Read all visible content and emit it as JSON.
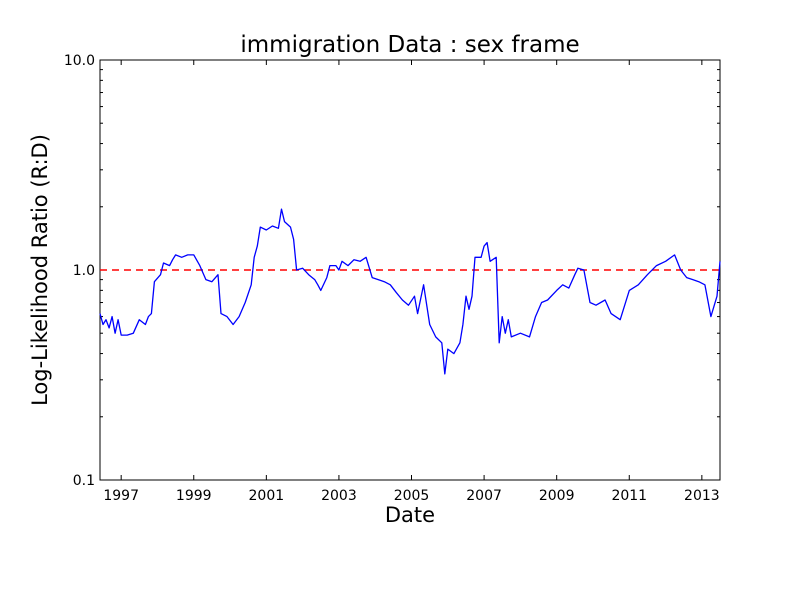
{
  "chart_data": {
    "type": "line",
    "title": "immigration Data : sex frame",
    "xlabel": "Date",
    "ylabel": "Log-Likelihood Ratio (R:D)",
    "y_scale": "log",
    "xlim": [
      "1996-06",
      "2013-07"
    ],
    "ylim": [
      0.1,
      10.0
    ],
    "x_ticks": [
      "1997",
      "1999",
      "2001",
      "2003",
      "2005",
      "2007",
      "2009",
      "2011",
      "2013"
    ],
    "y_ticks": [
      "0.1",
      "1.0",
      "10.0"
    ],
    "grid": false,
    "reference_line": {
      "y": 1.0,
      "style": "dashed",
      "color": "#ff0000"
    },
    "series": [
      {
        "color": "#0000ff",
        "points": [
          [
            "1996-06",
            0.62
          ],
          [
            "1996-07",
            0.55
          ],
          [
            "1996-08",
            0.58
          ],
          [
            "1996-09",
            0.53
          ],
          [
            "1996-10",
            0.6
          ],
          [
            "1996-11",
            0.5
          ],
          [
            "1996-12",
            0.58
          ],
          [
            "1997-01",
            0.49
          ],
          [
            "1997-03",
            0.49
          ],
          [
            "1997-05",
            0.5
          ],
          [
            "1997-07",
            0.58
          ],
          [
            "1997-09",
            0.55
          ],
          [
            "1997-10",
            0.6
          ],
          [
            "1997-11",
            0.62
          ],
          [
            "1997-12",
            0.88
          ],
          [
            "1998-02",
            0.95
          ],
          [
            "1998-03",
            1.08
          ],
          [
            "1998-05",
            1.05
          ],
          [
            "1998-06",
            1.12
          ],
          [
            "1998-07",
            1.18
          ],
          [
            "1998-09",
            1.15
          ],
          [
            "1998-11",
            1.18
          ],
          [
            "1999-01",
            1.18
          ],
          [
            "1999-03",
            1.05
          ],
          [
            "1999-05",
            0.9
          ],
          [
            "1999-07",
            0.88
          ],
          [
            "1999-09",
            0.95
          ],
          [
            "1999-10",
            0.62
          ],
          [
            "1999-12",
            0.6
          ],
          [
            "2000-02",
            0.55
          ],
          [
            "2000-04",
            0.6
          ],
          [
            "2000-06",
            0.7
          ],
          [
            "2000-08",
            0.85
          ],
          [
            "2000-09",
            1.15
          ],
          [
            "2000-10",
            1.3
          ],
          [
            "2000-11",
            1.6
          ],
          [
            "2001-01",
            1.55
          ],
          [
            "2001-03",
            1.62
          ],
          [
            "2001-05",
            1.58
          ],
          [
            "2001-06",
            1.95
          ],
          [
            "2001-07",
            1.7
          ],
          [
            "2001-09",
            1.6
          ],
          [
            "2001-10",
            1.4
          ],
          [
            "2001-11",
            1.0
          ],
          [
            "2002-01",
            1.02
          ],
          [
            "2002-03",
            0.95
          ],
          [
            "2002-05",
            0.9
          ],
          [
            "2002-06",
            0.85
          ],
          [
            "2002-07",
            0.8
          ],
          [
            "2002-09",
            0.92
          ],
          [
            "2002-10",
            1.05
          ],
          [
            "2002-12",
            1.05
          ],
          [
            "2003-01",
            1.0
          ],
          [
            "2003-02",
            1.1
          ],
          [
            "2003-04",
            1.05
          ],
          [
            "2003-06",
            1.12
          ],
          [
            "2003-08",
            1.1
          ],
          [
            "2003-10",
            1.15
          ],
          [
            "2003-12",
            0.92
          ],
          [
            "2004-02",
            0.9
          ],
          [
            "2004-04",
            0.88
          ],
          [
            "2004-06",
            0.85
          ],
          [
            "2004-08",
            0.78
          ],
          [
            "2004-10",
            0.72
          ],
          [
            "2004-12",
            0.68
          ],
          [
            "2005-02",
            0.75
          ],
          [
            "2005-03",
            0.62
          ],
          [
            "2005-05",
            0.85
          ],
          [
            "2005-07",
            0.55
          ],
          [
            "2005-09",
            0.48
          ],
          [
            "2005-11",
            0.45
          ],
          [
            "2005-12",
            0.32
          ],
          [
            "2006-01",
            0.42
          ],
          [
            "2006-03",
            0.4
          ],
          [
            "2006-05",
            0.45
          ],
          [
            "2006-06",
            0.55
          ],
          [
            "2006-07",
            0.75
          ],
          [
            "2006-08",
            0.65
          ],
          [
            "2006-09",
            0.75
          ],
          [
            "2006-10",
            1.15
          ],
          [
            "2006-12",
            1.15
          ],
          [
            "2007-01",
            1.3
          ],
          [
            "2007-02",
            1.35
          ],
          [
            "2007-03",
            1.1
          ],
          [
            "2007-05",
            1.15
          ],
          [
            "2007-06",
            0.45
          ],
          [
            "2007-07",
            0.6
          ],
          [
            "2007-08",
            0.5
          ],
          [
            "2007-09",
            0.58
          ],
          [
            "2007-10",
            0.48
          ],
          [
            "2008-01",
            0.5
          ],
          [
            "2008-04",
            0.48
          ],
          [
            "2008-06",
            0.6
          ],
          [
            "2008-08",
            0.7
          ],
          [
            "2008-10",
            0.72
          ],
          [
            "2009-01",
            0.8
          ],
          [
            "2009-03",
            0.85
          ],
          [
            "2009-05",
            0.82
          ],
          [
            "2009-07",
            0.95
          ],
          [
            "2009-08",
            1.02
          ],
          [
            "2009-10",
            1.0
          ],
          [
            "2009-12",
            0.7
          ],
          [
            "2010-02",
            0.68
          ],
          [
            "2010-05",
            0.72
          ],
          [
            "2010-07",
            0.62
          ],
          [
            "2010-10",
            0.58
          ],
          [
            "2011-01",
            0.8
          ],
          [
            "2011-04",
            0.85
          ],
          [
            "2011-07",
            0.95
          ],
          [
            "2011-10",
            1.05
          ],
          [
            "2012-01",
            1.1
          ],
          [
            "2012-04",
            1.18
          ],
          [
            "2012-06",
            1.0
          ],
          [
            "2012-08",
            0.92
          ],
          [
            "2012-10",
            0.9
          ],
          [
            "2012-12",
            0.88
          ],
          [
            "2013-02",
            0.85
          ],
          [
            "2013-04",
            0.6
          ],
          [
            "2013-06",
            0.75
          ],
          [
            "2013-07",
            1.1
          ]
        ]
      }
    ]
  }
}
